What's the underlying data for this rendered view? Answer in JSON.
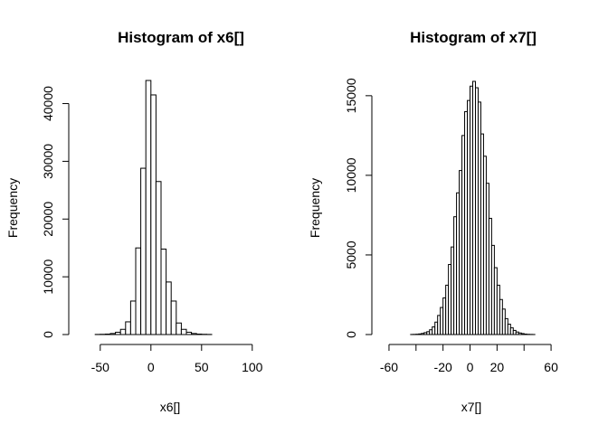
{
  "chart_data": [
    {
      "type": "bar",
      "title": "Histogram of x6[]",
      "xlabel": "x6[]",
      "ylabel": "Frequency",
      "xlim": [
        -90,
        110
      ],
      "ylim": [
        0,
        44000
      ],
      "xticks": [
        -50,
        0,
        50,
        100
      ],
      "yticks": [
        0,
        10000,
        20000,
        30000,
        40000
      ],
      "bin_width": 5,
      "bins": [
        {
          "x0": -90,
          "x1": -85,
          "value": 0
        },
        {
          "x0": -85,
          "x1": -80,
          "value": 0
        },
        {
          "x0": -80,
          "x1": -75,
          "value": 0
        },
        {
          "x0": -75,
          "x1": -70,
          "value": 0
        },
        {
          "x0": -70,
          "x1": -65,
          "value": 0
        },
        {
          "x0": -65,
          "x1": -60,
          "value": 0
        },
        {
          "x0": -60,
          "x1": -55,
          "value": 0
        },
        {
          "x0": -55,
          "x1": -50,
          "value": 20
        },
        {
          "x0": -50,
          "x1": -45,
          "value": 40
        },
        {
          "x0": -45,
          "x1": -40,
          "value": 80
        },
        {
          "x0": -40,
          "x1": -35,
          "value": 180
        },
        {
          "x0": -35,
          "x1": -30,
          "value": 400
        },
        {
          "x0": -30,
          "x1": -25,
          "value": 900
        },
        {
          "x0": -25,
          "x1": -20,
          "value": 2200
        },
        {
          "x0": -20,
          "x1": -15,
          "value": 5800
        },
        {
          "x0": -15,
          "x1": -10,
          "value": 15000
        },
        {
          "x0": -10,
          "x1": -5,
          "value": 28800
        },
        {
          "x0": -5,
          "x1": 0,
          "value": 44000
        },
        {
          "x0": 0,
          "x1": 5,
          "value": 41500
        },
        {
          "x0": 5,
          "x1": 10,
          "value": 26500
        },
        {
          "x0": 10,
          "x1": 15,
          "value": 14800
        },
        {
          "x0": 15,
          "x1": 20,
          "value": 9100
        },
        {
          "x0": 20,
          "x1": 25,
          "value": 5800
        },
        {
          "x0": 25,
          "x1": 30,
          "value": 2000
        },
        {
          "x0": 30,
          "x1": 35,
          "value": 900
        },
        {
          "x0": 35,
          "x1": 40,
          "value": 400
        },
        {
          "x0": 40,
          "x1": 45,
          "value": 180
        },
        {
          "x0": 45,
          "x1": 50,
          "value": 80
        },
        {
          "x0": 50,
          "x1": 55,
          "value": 40
        },
        {
          "x0": 55,
          "x1": 60,
          "value": 20
        },
        {
          "x0": 60,
          "x1": 65,
          "value": 0
        },
        {
          "x0": 65,
          "x1": 70,
          "value": 0
        },
        {
          "x0": 70,
          "x1": 75,
          "value": 0
        },
        {
          "x0": 75,
          "x1": 80,
          "value": 0
        },
        {
          "x0": 80,
          "x1": 85,
          "value": 0
        },
        {
          "x0": 85,
          "x1": 90,
          "value": 0
        },
        {
          "x0": 90,
          "x1": 95,
          "value": 0
        },
        {
          "x0": 95,
          "x1": 100,
          "value": 0
        },
        {
          "x0": 100,
          "x1": 105,
          "value": 0
        },
        {
          "x0": 105,
          "x1": 110,
          "value": 0
        }
      ]
    },
    {
      "type": "bar",
      "title": "Histogram of x7[]",
      "xlabel": "x7[]",
      "ylabel": "Frequency",
      "xlim": [
        -66,
        70
      ],
      "ylim": [
        0,
        15900
      ],
      "xticks": [
        -60,
        -20,
        0,
        20,
        60
      ],
      "minor_xticks": [
        -40,
        40
      ],
      "yticks": [
        0,
        5000,
        10000,
        15000
      ],
      "bin_width": 2,
      "bins": [
        {
          "x0": -44,
          "x1": -42,
          "value": 5
        },
        {
          "x0": -42,
          "x1": -40,
          "value": 10
        },
        {
          "x0": -40,
          "x1": -38,
          "value": 20
        },
        {
          "x0": -38,
          "x1": -36,
          "value": 40
        },
        {
          "x0": -36,
          "x1": -34,
          "value": 70
        },
        {
          "x0": -34,
          "x1": -32,
          "value": 120
        },
        {
          "x0": -32,
          "x1": -30,
          "value": 180
        },
        {
          "x0": -30,
          "x1": -28,
          "value": 300
        },
        {
          "x0": -28,
          "x1": -26,
          "value": 480
        },
        {
          "x0": -26,
          "x1": -24,
          "value": 780
        },
        {
          "x0": -24,
          "x1": -22,
          "value": 1200
        },
        {
          "x0": -22,
          "x1": -20,
          "value": 1700
        },
        {
          "x0": -20,
          "x1": -18,
          "value": 2300
        },
        {
          "x0": -18,
          "x1": -16,
          "value": 3100
        },
        {
          "x0": -16,
          "x1": -14,
          "value": 4400
        },
        {
          "x0": -14,
          "x1": -12,
          "value": 5500
        },
        {
          "x0": -12,
          "x1": -10,
          "value": 7400
        },
        {
          "x0": -10,
          "x1": -8,
          "value": 8900
        },
        {
          "x0": -8,
          "x1": -6,
          "value": 10300
        },
        {
          "x0": -6,
          "x1": -4,
          "value": 12500
        },
        {
          "x0": -4,
          "x1": -2,
          "value": 14000
        },
        {
          "x0": -2,
          "x1": 0,
          "value": 14700
        },
        {
          "x0": 0,
          "x1": 2,
          "value": 15600
        },
        {
          "x0": 2,
          "x1": 4,
          "value": 15900
        },
        {
          "x0": 4,
          "x1": 6,
          "value": 15500
        },
        {
          "x0": 6,
          "x1": 8,
          "value": 14600
        },
        {
          "x0": 8,
          "x1": 10,
          "value": 12600
        },
        {
          "x0": 10,
          "x1": 12,
          "value": 11200
        },
        {
          "x0": 12,
          "x1": 14,
          "value": 9500
        },
        {
          "x0": 14,
          "x1": 16,
          "value": 7300
        },
        {
          "x0": 16,
          "x1": 18,
          "value": 5600
        },
        {
          "x0": 18,
          "x1": 20,
          "value": 4200
        },
        {
          "x0": 20,
          "x1": 22,
          "value": 3100
        },
        {
          "x0": 22,
          "x1": 24,
          "value": 2200
        },
        {
          "x0": 24,
          "x1": 26,
          "value": 1600
        },
        {
          "x0": 26,
          "x1": 28,
          "value": 1000
        },
        {
          "x0": 28,
          "x1": 30,
          "value": 650
        },
        {
          "x0": 30,
          "x1": 32,
          "value": 420
        },
        {
          "x0": 32,
          "x1": 34,
          "value": 260
        },
        {
          "x0": 34,
          "x1": 36,
          "value": 160
        },
        {
          "x0": 36,
          "x1": 38,
          "value": 100
        },
        {
          "x0": 38,
          "x1": 40,
          "value": 60
        },
        {
          "x0": 40,
          "x1": 42,
          "value": 30
        },
        {
          "x0": 42,
          "x1": 44,
          "value": 15
        },
        {
          "x0": 44,
          "x1": 46,
          "value": 8
        },
        {
          "x0": 46,
          "x1": 48,
          "value": 4
        }
      ]
    }
  ]
}
